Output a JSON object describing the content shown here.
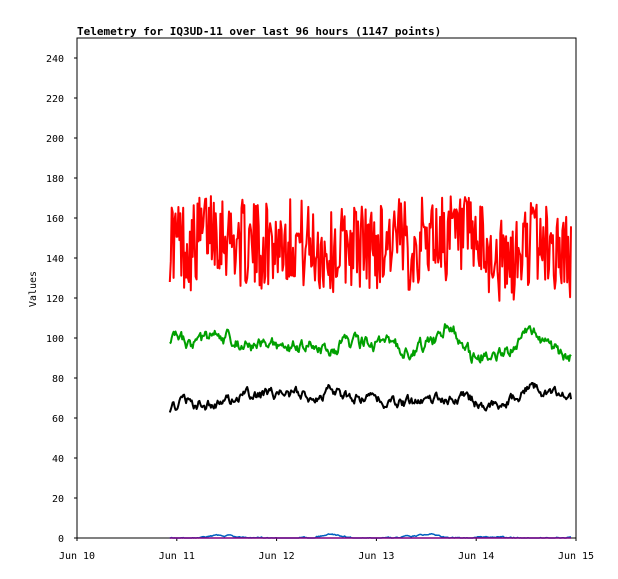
{
  "chart_data": {
    "type": "line",
    "title": "Telemetry for IQ3UD-11 over last 96 hours (1147 points)",
    "xlabel": "",
    "ylabel": "Values",
    "x_ticks": [
      "Jun 10",
      "Jun 11",
      "Jun 12",
      "Jun 13",
      "Jun 14",
      "Jun 15"
    ],
    "xlim": [
      10,
      15
    ],
    "y_ticks": [
      0,
      20,
      40,
      60,
      80,
      100,
      120,
      140,
      160,
      180,
      200,
      220,
      240
    ],
    "ylim": [
      0,
      250
    ],
    "grid": false,
    "legend": "none",
    "x": [
      10.95,
      11.15,
      11.35,
      11.55,
      11.75,
      11.95,
      12.15,
      12.35,
      12.55,
      12.75,
      12.95,
      13.15,
      13.35,
      13.55,
      13.75,
      13.95,
      14.15,
      14.35,
      14.55,
      14.75,
      14.95
    ],
    "series": [
      {
        "color": "#ff0000",
        "values": [
          150,
          145,
          158,
          150,
          145,
          148,
          150,
          145,
          142,
          148,
          145,
          150,
          145,
          152,
          150,
          148,
          140,
          135,
          150,
          145,
          140
        ]
      },
      {
        "color": "#00a000",
        "values": [
          100,
          95,
          100,
          100,
          94,
          96,
          94,
          95,
          97,
          96,
          98,
          97,
          94,
          97,
          108,
          90,
          92,
          95,
          103,
          93,
          90
        ]
      },
      {
        "color": "#000000",
        "values": [
          65,
          68,
          66,
          70,
          70,
          72,
          72,
          71,
          73,
          70,
          69,
          69,
          67,
          70,
          72,
          69,
          66,
          68,
          76,
          72,
          68
        ]
      },
      {
        "color": "#0060c0",
        "values": [
          0,
          0,
          1,
          1,
          0,
          0,
          0,
          0,
          2,
          0,
          0,
          0,
          1,
          2,
          0,
          0,
          1,
          0,
          0,
          0,
          0
        ]
      },
      {
        "color": "#800080",
        "values": [
          0,
          0,
          0,
          0,
          0,
          0,
          0,
          0,
          0,
          0,
          0,
          0,
          0,
          0,
          0,
          0,
          0,
          0,
          0,
          0,
          0
        ]
      }
    ],
    "data_start": 10.93,
    "data_end": 14.95
  }
}
